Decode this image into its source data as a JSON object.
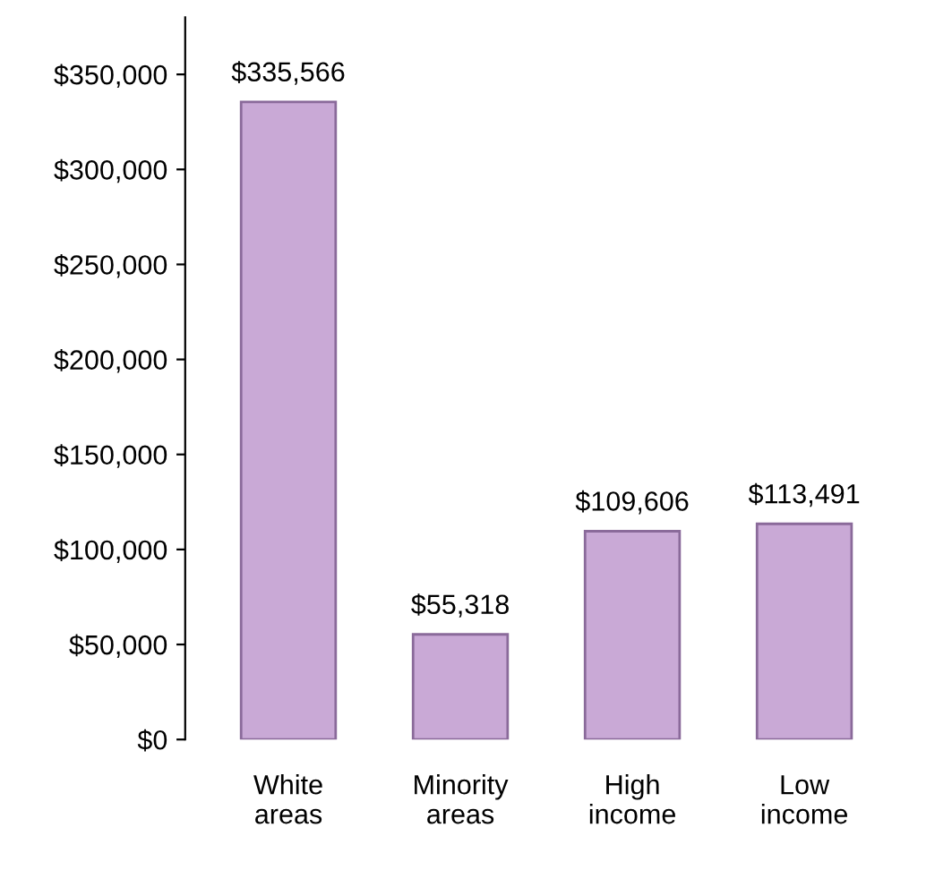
{
  "chart_data": {
    "type": "bar",
    "categories": [
      "White\nareas",
      "Minority\nareas",
      "High\nincome",
      "Low\nincome"
    ],
    "values": [
      335566,
      55318,
      109606,
      113491
    ],
    "value_labels": [
      "$335,566",
      "$55,318",
      "$109,606",
      "$113,491"
    ],
    "color": "#c9a9d6",
    "ylim": [
      0,
      380000
    ],
    "yticks": [
      {
        "value": 0,
        "label": "$0"
      },
      {
        "value": 50000,
        "label": "$50,000"
      },
      {
        "value": 100000,
        "label": "$100,000"
      },
      {
        "value": 150000,
        "label": "$150,000"
      },
      {
        "value": 200000,
        "label": "$200,000"
      },
      {
        "value": 250000,
        "label": "$250,000"
      },
      {
        "value": 300000,
        "label": "$300,000"
      },
      {
        "value": 350000,
        "label": "$350,000"
      }
    ],
    "grid": false,
    "legend": false
  }
}
